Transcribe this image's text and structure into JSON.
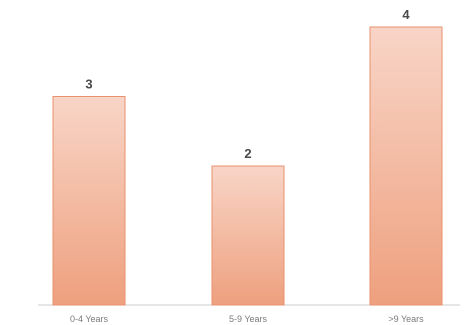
{
  "chart_data": {
    "type": "bar",
    "categories": [
      "0-4 Years",
      "5-9 Years",
      ">9 Years"
    ],
    "values": [
      3,
      2,
      4
    ],
    "ylim": [
      0,
      4
    ],
    "grid": false,
    "legend": "none",
    "data_labels": [
      "3",
      "2",
      "4"
    ],
    "colors": {
      "bar_top": "#f8d5c7",
      "bar_bottom": "#eea07e",
      "bar_edge": "#e8916d",
      "baseline": "#cccccc",
      "value_text": "#4a4a4a",
      "tick_text": "#7a7a7a"
    }
  }
}
